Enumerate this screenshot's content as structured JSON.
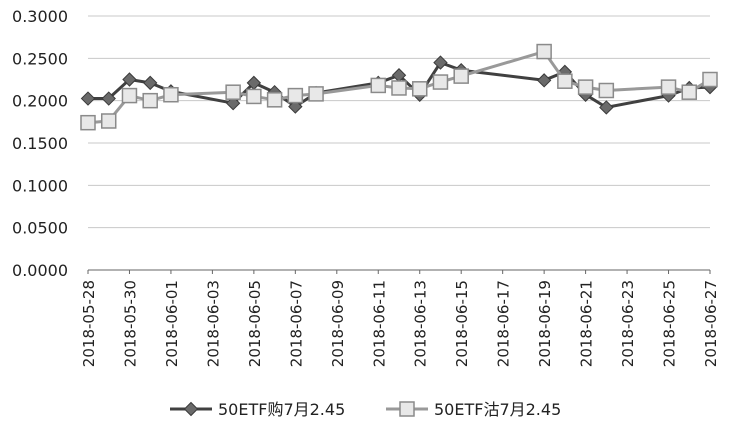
{
  "chart_data": {
    "type": "line",
    "title": "",
    "xlabel": "",
    "ylabel": "",
    "ylim": [
      0,
      0.3
    ],
    "y_ticks": [
      "0.0000",
      "0.0500",
      "0.1000",
      "0.1500",
      "0.2000",
      "0.2500",
      "0.3000"
    ],
    "x_range": [
      "2018-05-28",
      "2018-06-27"
    ],
    "x_ticks": [
      "2018-05-28",
      "2018-05-30",
      "2018-06-01",
      "2018-06-03",
      "2018-06-05",
      "2018-06-07",
      "2018-06-09",
      "2018-06-11",
      "2018-06-13",
      "2018-06-15",
      "2018-06-17",
      "2018-06-19",
      "2018-06-21",
      "2018-06-23",
      "2018-06-25",
      "2018-06-27"
    ],
    "grid": "horizontal",
    "legend": "bottom",
    "series": [
      {
        "name": "50ETF购7月2.45",
        "color": "#404040",
        "marker": "diamond",
        "points": [
          [
            "2018-05-28",
            0.2025
          ],
          [
            "2018-05-29",
            0.2025
          ],
          [
            "2018-05-30",
            0.225
          ],
          [
            "2018-05-31",
            0.221
          ],
          [
            "2018-06-01",
            0.211
          ],
          [
            "2018-06-04",
            0.197
          ],
          [
            "2018-06-05",
            0.221
          ],
          [
            "2018-06-06",
            0.21
          ],
          [
            "2018-06-07",
            0.193
          ],
          [
            "2018-06-08",
            0.209
          ],
          [
            "2018-06-11",
            0.221
          ],
          [
            "2018-06-12",
            0.23
          ],
          [
            "2018-06-13",
            0.207
          ],
          [
            "2018-06-14",
            0.245
          ],
          [
            "2018-06-15",
            0.236
          ],
          [
            "2018-06-19",
            0.224
          ],
          [
            "2018-06-20",
            0.234
          ],
          [
            "2018-06-21",
            0.207
          ],
          [
            "2018-06-22",
            0.192
          ],
          [
            "2018-06-25",
            0.206
          ],
          [
            "2018-06-26",
            0.215
          ],
          [
            "2018-06-27",
            0.216
          ]
        ]
      },
      {
        "name": "50ETF沽7月2.45",
        "color": "#999999",
        "marker": "square",
        "points": [
          [
            "2018-05-28",
            0.174
          ],
          [
            "2018-05-29",
            0.176
          ],
          [
            "2018-05-30",
            0.206
          ],
          [
            "2018-05-31",
            0.2
          ],
          [
            "2018-06-01",
            0.207
          ],
          [
            "2018-06-04",
            0.21
          ],
          [
            "2018-06-05",
            0.205
          ],
          [
            "2018-06-06",
            0.201
          ],
          [
            "2018-06-07",
            0.206
          ],
          [
            "2018-06-08",
            0.208
          ],
          [
            "2018-06-11",
            0.218
          ],
          [
            "2018-06-12",
            0.215
          ],
          [
            "2018-06-13",
            0.214
          ],
          [
            "2018-06-14",
            0.222
          ],
          [
            "2018-06-15",
            0.229
          ],
          [
            "2018-06-19",
            0.258
          ],
          [
            "2018-06-20",
            0.223
          ],
          [
            "2018-06-21",
            0.216
          ],
          [
            "2018-06-22",
            0.212
          ],
          [
            "2018-06-25",
            0.216
          ],
          [
            "2018-06-26",
            0.21
          ],
          [
            "2018-06-27",
            0.225
          ]
        ]
      }
    ]
  }
}
